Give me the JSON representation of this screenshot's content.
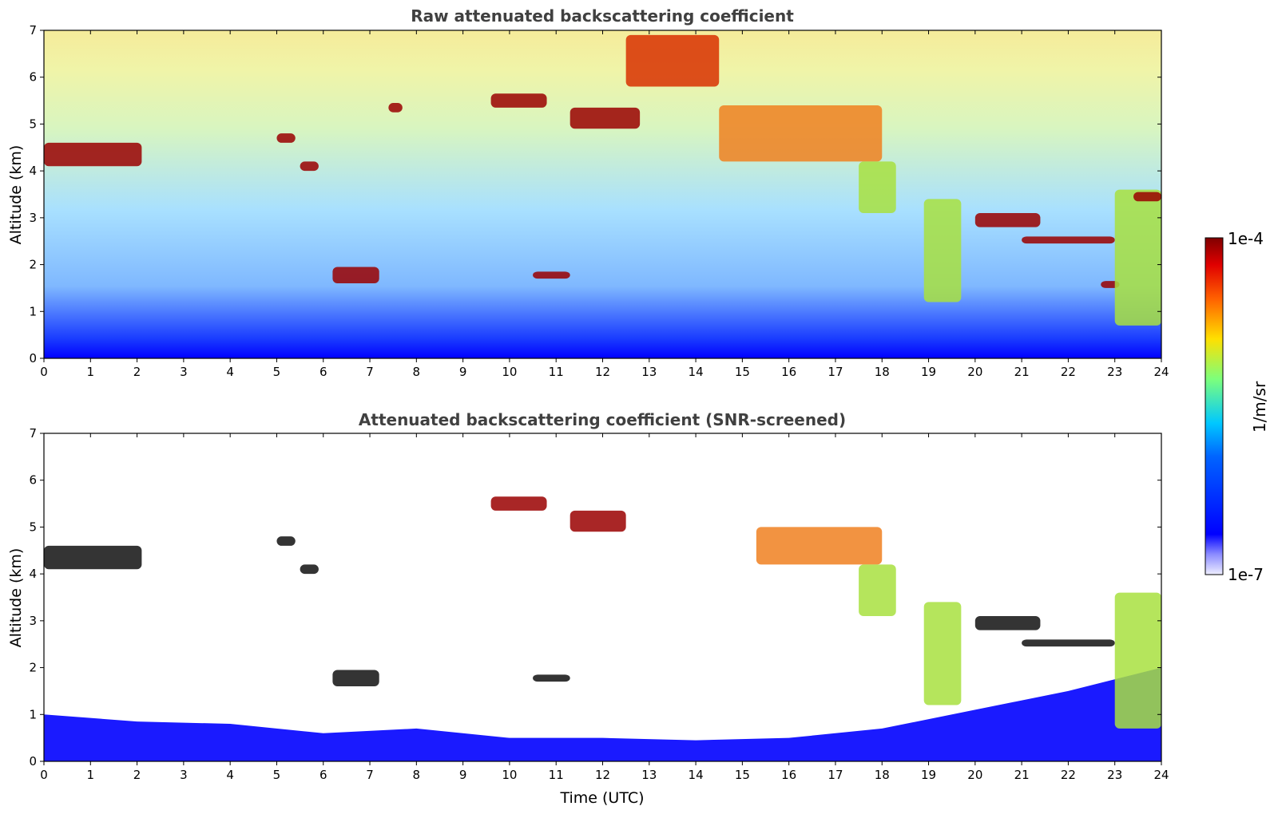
{
  "chart_data": [
    {
      "type": "heatmap",
      "title": "Raw attenuated backscattering coefficient",
      "xlabel": "",
      "ylabel": "Altitude (km)",
      "xlim": [
        0,
        24
      ],
      "ylim": [
        0,
        7
      ],
      "xticks": [
        "0",
        "1",
        "2",
        "3",
        "4",
        "5",
        "6",
        "7",
        "8",
        "9",
        "10",
        "11",
        "12",
        "13",
        "14",
        "15",
        "16",
        "17",
        "18",
        "19",
        "20",
        "21",
        "22",
        "23",
        "24"
      ],
      "yticks": [
        "0",
        "1",
        "2",
        "3",
        "4",
        "5",
        "6",
        "7"
      ],
      "features": [
        {
          "t_start": 0.0,
          "t_end": 2.1,
          "alt_low": 4.1,
          "alt_high": 4.6,
          "level": "1e-4"
        },
        {
          "t_start": 5.0,
          "t_end": 5.4,
          "alt_low": 4.6,
          "alt_high": 4.8,
          "level": "1e-4"
        },
        {
          "t_start": 5.5,
          "t_end": 5.9,
          "alt_low": 4.0,
          "alt_high": 4.2,
          "level": "1e-4"
        },
        {
          "t_start": 6.2,
          "t_end": 7.2,
          "alt_low": 1.6,
          "alt_high": 1.95,
          "level": "1e-4"
        },
        {
          "t_start": 7.4,
          "t_end": 7.7,
          "alt_low": 5.25,
          "alt_high": 5.45,
          "level": "1e-4"
        },
        {
          "t_start": 9.6,
          "t_end": 10.8,
          "alt_low": 5.35,
          "alt_high": 5.65,
          "level": "1e-4"
        },
        {
          "t_start": 10.5,
          "t_end": 11.3,
          "alt_low": 1.7,
          "alt_high": 1.85,
          "level": "1e-4"
        },
        {
          "t_start": 11.3,
          "t_end": 12.8,
          "alt_low": 4.9,
          "alt_high": 5.35,
          "level": "1e-4"
        },
        {
          "t_start": 12.5,
          "t_end": 14.5,
          "alt_low": 5.8,
          "alt_high": 6.9,
          "level": "5e-5"
        },
        {
          "t_start": 14.5,
          "t_end": 18.0,
          "alt_low": 4.2,
          "alt_high": 5.4,
          "level": "2e-5"
        },
        {
          "t_start": 17.5,
          "t_end": 18.3,
          "alt_low": 3.1,
          "alt_high": 4.2,
          "level": "5e-6"
        },
        {
          "t_start": 18.9,
          "t_end": 19.7,
          "alt_low": 1.2,
          "alt_high": 3.4,
          "level": "5e-6"
        },
        {
          "t_start": 20.0,
          "t_end": 21.4,
          "alt_low": 2.8,
          "alt_high": 3.1,
          "level": "1e-4"
        },
        {
          "t_start": 21.0,
          "t_end": 23.0,
          "alt_low": 2.45,
          "alt_high": 2.6,
          "level": "1e-4"
        },
        {
          "t_start": 22.7,
          "t_end": 23.1,
          "alt_low": 1.5,
          "alt_high": 1.65,
          "level": "1e-4"
        },
        {
          "t_start": 23.0,
          "t_end": 24.0,
          "alt_low": 0.7,
          "alt_high": 3.6,
          "level": "5e-6"
        },
        {
          "t_start": 23.4,
          "t_end": 24.0,
          "alt_low": 3.35,
          "alt_high": 3.55,
          "level": "1e-4"
        }
      ]
    },
    {
      "type": "heatmap",
      "title": "Attenuated backscattering coefficient (SNR-screened)",
      "xlabel": "Time (UTC)",
      "ylabel": "Altitude (km)",
      "xlim": [
        0,
        24
      ],
      "ylim": [
        0,
        7
      ],
      "xticks": [
        "0",
        "1",
        "2",
        "3",
        "4",
        "5",
        "6",
        "7",
        "8",
        "9",
        "10",
        "11",
        "12",
        "13",
        "14",
        "15",
        "16",
        "17",
        "18",
        "19",
        "20",
        "21",
        "22",
        "23",
        "24"
      ],
      "yticks": [
        "0",
        "1",
        "2",
        "3",
        "4",
        "5",
        "6",
        "7"
      ],
      "boundary_layer_top": [
        {
          "t": 0,
          "alt": 1.0
        },
        {
          "t": 2,
          "alt": 0.85
        },
        {
          "t": 4,
          "alt": 0.8
        },
        {
          "t": 6,
          "alt": 0.6
        },
        {
          "t": 8,
          "alt": 0.7
        },
        {
          "t": 10,
          "alt": 0.5
        },
        {
          "t": 12,
          "alt": 0.5
        },
        {
          "t": 14,
          "alt": 0.45
        },
        {
          "t": 16,
          "alt": 0.5
        },
        {
          "t": 18,
          "alt": 0.7
        },
        {
          "t": 20,
          "alt": 1.1
        },
        {
          "t": 22,
          "alt": 1.5
        },
        {
          "t": 24,
          "alt": 2.0
        }
      ],
      "features": [
        {
          "t_start": 0.0,
          "t_end": 2.1,
          "alt_low": 4.1,
          "alt_high": 4.6,
          "level": "saturated"
        },
        {
          "t_start": 5.0,
          "t_end": 5.4,
          "alt_low": 4.6,
          "alt_high": 4.8,
          "level": "saturated"
        },
        {
          "t_start": 5.5,
          "t_end": 5.9,
          "alt_low": 4.0,
          "alt_high": 4.2,
          "level": "saturated"
        },
        {
          "t_start": 6.2,
          "t_end": 7.2,
          "alt_low": 1.6,
          "alt_high": 1.95,
          "level": "saturated"
        },
        {
          "t_start": 9.6,
          "t_end": 10.8,
          "alt_low": 5.35,
          "alt_high": 5.65,
          "level": "1e-4"
        },
        {
          "t_start": 10.5,
          "t_end": 11.3,
          "alt_low": 1.7,
          "alt_high": 1.85,
          "level": "saturated"
        },
        {
          "t_start": 11.3,
          "t_end": 12.5,
          "alt_low": 4.9,
          "alt_high": 5.35,
          "level": "1e-4"
        },
        {
          "t_start": 15.3,
          "t_end": 18.0,
          "alt_low": 4.2,
          "alt_high": 5.0,
          "level": "2e-5"
        },
        {
          "t_start": 17.5,
          "t_end": 18.3,
          "alt_low": 3.1,
          "alt_high": 4.2,
          "level": "5e-6"
        },
        {
          "t_start": 18.9,
          "t_end": 19.7,
          "alt_low": 1.2,
          "alt_high": 3.4,
          "level": "5e-6"
        },
        {
          "t_start": 20.0,
          "t_end": 21.4,
          "alt_low": 2.8,
          "alt_high": 3.1,
          "level": "saturated"
        },
        {
          "t_start": 21.0,
          "t_end": 23.0,
          "alt_low": 2.45,
          "alt_high": 2.6,
          "level": "saturated"
        },
        {
          "t_start": 23.0,
          "t_end": 24.0,
          "alt_low": 0.7,
          "alt_high": 3.6,
          "level": "5e-6"
        }
      ]
    }
  ],
  "colorbar": {
    "label": "1/m/sr",
    "max_label": "1e-4",
    "min_label": "1e-7",
    "scale": "log",
    "colormap": "jet",
    "colors": [
      "#eeeeff",
      "#0000ff",
      "#00c8ff",
      "#7cff7c",
      "#ffe000",
      "#ff3000",
      "#800000"
    ]
  }
}
